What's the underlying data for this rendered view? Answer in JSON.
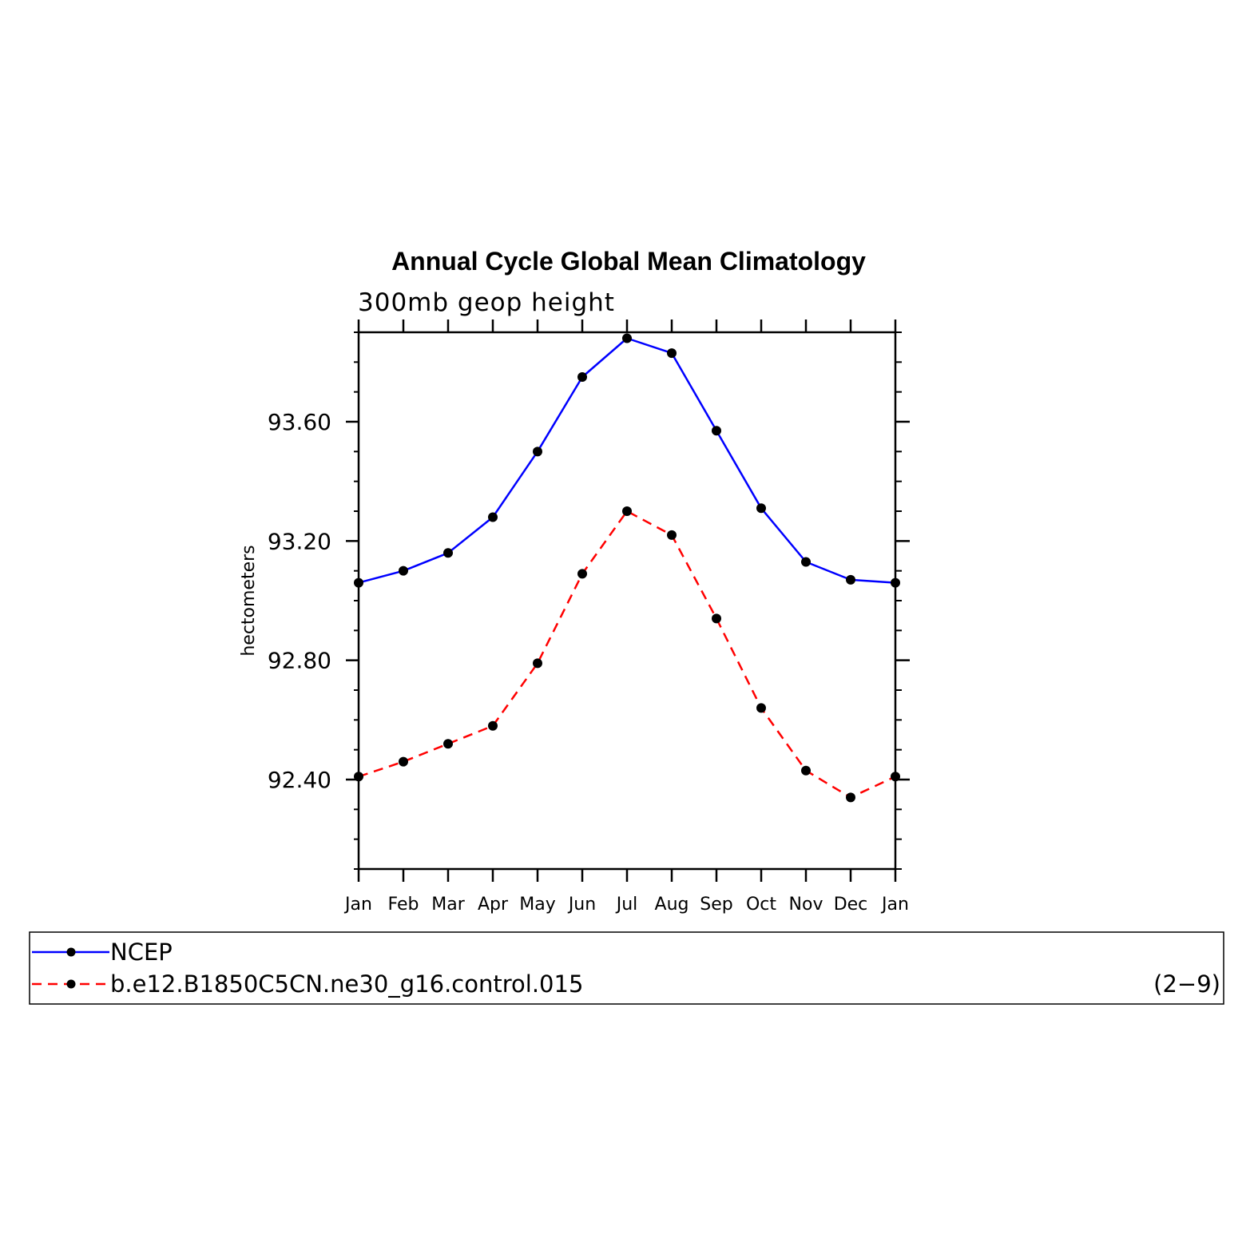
{
  "chart_data": {
    "type": "line",
    "title": "Annual Cycle Global Mean Climatology",
    "subtitle": "300mb geop height",
    "ylabel": "hectometers",
    "xlabel": "",
    "categories": [
      "Jan",
      "Feb",
      "Mar",
      "Apr",
      "May",
      "Jun",
      "Jul",
      "Aug",
      "Sep",
      "Oct",
      "Nov",
      "Dec",
      "Jan"
    ],
    "ylim": [
      92.1,
      93.9
    ],
    "yticks": [
      92.4,
      92.8,
      93.2,
      93.6
    ],
    "ytick_labels": [
      "92.40",
      "92.80",
      "93.20",
      "93.60"
    ],
    "y_minor_step": 0.1,
    "series": [
      {
        "name": "NCEP",
        "color": "#0000ff",
        "style": "solid",
        "values": [
          93.06,
          93.1,
          93.16,
          93.28,
          93.5,
          93.75,
          93.88,
          93.83,
          93.57,
          93.31,
          93.13,
          93.07,
          93.06
        ]
      },
      {
        "name": "b.e12.B1850C5CN.ne30_g16.control.015",
        "color": "#ff0000",
        "style": "dashed",
        "values": [
          92.41,
          92.46,
          92.52,
          92.58,
          92.79,
          93.09,
          93.3,
          93.22,
          92.94,
          92.64,
          92.43,
          92.34,
          92.41
        ]
      }
    ],
    "marker_color": "#000000",
    "legend_position": "bottom",
    "legend_note": "(2−9)"
  }
}
